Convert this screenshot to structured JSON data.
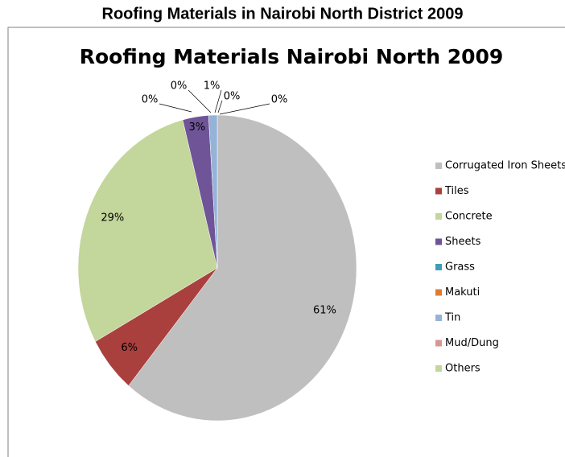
{
  "title": "Roofing Materials in Nairobi North District 2009",
  "chart_data": {
    "type": "pie",
    "title": "Roofing Materials Nairobi North 2009",
    "categories": [
      "Corrugated Iron Sheets",
      "Tiles",
      "Concrete",
      "Sheets",
      "Grass",
      "Makuti",
      "Tin",
      "Mud/Dung",
      "Others"
    ],
    "values": [
      61,
      6,
      29,
      3,
      0,
      0,
      1,
      0,
      0
    ],
    "value_labels": [
      "61%",
      "6%",
      "29%",
      "3%",
      "0%",
      "0%",
      "1%",
      "0%",
      "0%"
    ],
    "colors": [
      "#bfbfbf",
      "#a9403e",
      "#c3d69b",
      "#6f5597",
      "#3d9eb5",
      "#e07c2f",
      "#95b3d7",
      "#d99694",
      "#c3d69b"
    ],
    "legend": "right"
  }
}
